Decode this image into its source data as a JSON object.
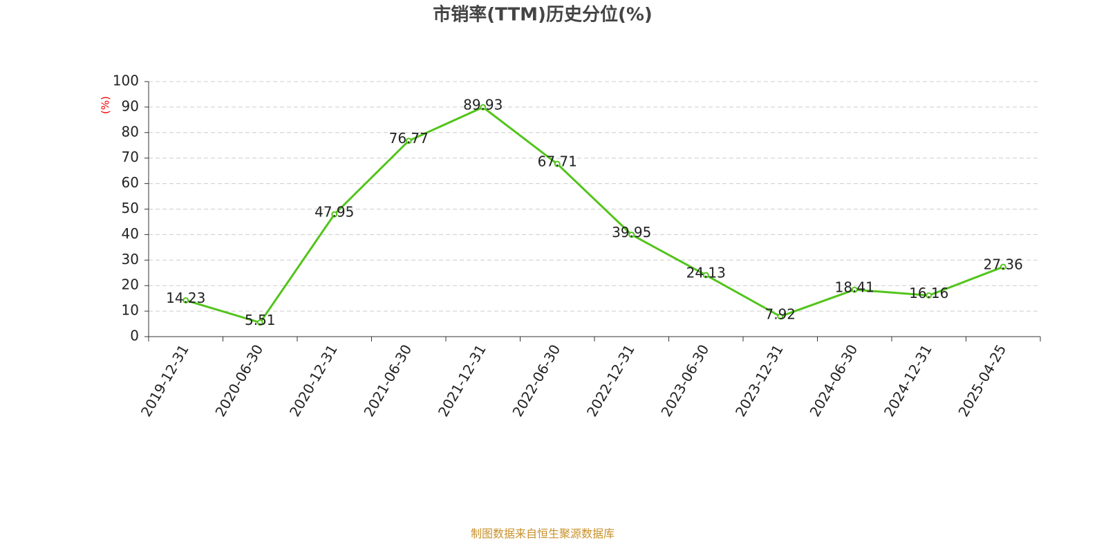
{
  "chart_data": {
    "type": "line",
    "title": "市销率(TTM)历史分位(%)",
    "y_label": "(%)",
    "categories": [
      "2019-12-31",
      "2020-06-30",
      "2020-12-31",
      "2021-06-30",
      "2021-12-31",
      "2022-06-30",
      "2022-12-31",
      "2023-06-30",
      "2023-12-31",
      "2024-06-30",
      "2024-12-31",
      "2025-04-25"
    ],
    "series": [
      {
        "name": "市销率(TTM)历史分位",
        "color": "#52c41a",
        "values": [
          14.23,
          5.51,
          47.95,
          76.77,
          89.93,
          67.71,
          39.95,
          24.13,
          7.92,
          18.41,
          16.16,
          27.36
        ]
      }
    ],
    "ylim": [
      0,
      100
    ],
    "yticks": [
      0,
      10,
      20,
      30,
      40,
      50,
      60,
      70,
      80,
      90,
      100
    ],
    "grid": true,
    "source": "制图数据来自恒生聚源数据库"
  }
}
